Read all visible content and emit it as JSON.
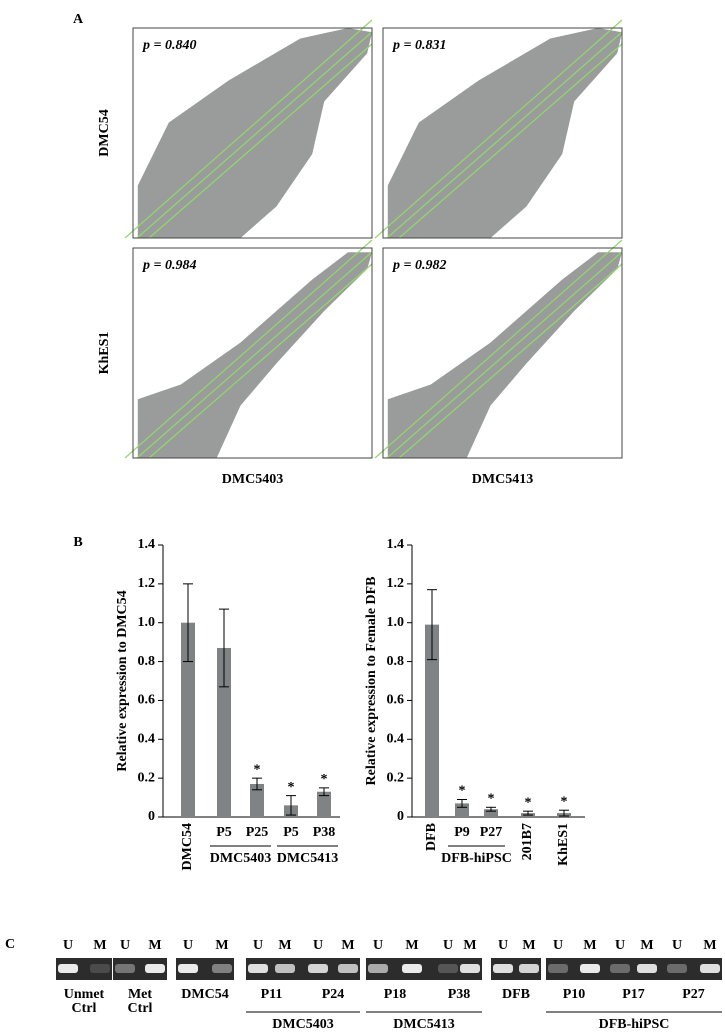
{
  "panels": [
    "A",
    "B",
    "C"
  ],
  "chart_data": [
    {
      "type": "scatter",
      "annotation": "p = 0.840",
      "ylabel": "DMC54"
    },
    {
      "type": "scatter",
      "annotation": "p = 0.831"
    },
    {
      "type": "scatter",
      "annotation": "p = 0.984",
      "ylabel": "KhES1",
      "xlabel": "DMC5403"
    },
    {
      "type": "scatter",
      "annotation": "p = 0.982",
      "xlabel": "DMC5413"
    },
    {
      "type": "bar",
      "ylabel": "Relative expression to DMC54",
      "color": "#7f8383",
      "categories": [
        "DMC54",
        "P5",
        "P25",
        "P5",
        "P38"
      ],
      "groups": [
        null,
        "DMC5403",
        "DMC5403",
        "DMC5413",
        "DMC5413"
      ],
      "values": [
        1.0,
        0.87,
        0.17,
        0.06,
        0.13
      ],
      "errors": [
        0.2,
        0.2,
        0.03,
        0.05,
        0.02
      ],
      "markers": [
        null,
        null,
        "*",
        "*",
        "*"
      ],
      "ylim": [
        0,
        1.4
      ],
      "yticks": [
        0,
        0.2,
        0.4,
        0.6,
        0.8,
        {
          "value": 1,
          "label": "1.0"
        },
        1.2,
        1.4
      ]
    },
    {
      "type": "bar",
      "ylabel": "Relative expression to Female DFB",
      "color": "#7f8383",
      "categories": [
        "DFB",
        "P9",
        "P27",
        "201B7",
        "KhES1"
      ],
      "groups": [
        null,
        "DFB-hiPSC",
        "DFB-hiPSC",
        null,
        null
      ],
      "values": [
        0.99,
        0.07,
        0.04,
        0.02,
        0.02
      ],
      "errors": [
        0.18,
        0.02,
        0.01,
        0.01,
        0.015
      ],
      "markers": [
        null,
        "*",
        "*",
        "*",
        "*"
      ],
      "ylim": [
        0,
        1.4
      ],
      "yticks": [
        0,
        0.2,
        0.4,
        0.6,
        0.8,
        {
          "value": 1,
          "label": "1.0"
        },
        1.2,
        1.4
      ]
    }
  ],
  "gel": {
    "samples": [
      {
        "name": [
          "Unmet",
          "Ctrl"
        ],
        "lanes": [
          "U",
          "M"
        ]
      },
      {
        "name": [
          "Met",
          "Ctrl"
        ],
        "lanes": [
          "U",
          "M"
        ]
      },
      {
        "name": [
          "DMC54"
        ],
        "lanes": [
          "U",
          "M"
        ]
      },
      {
        "name": [
          "P11"
        ],
        "lanes": [
          "U",
          "M"
        ]
      },
      {
        "name": [
          "P24"
        ],
        "lanes": [
          "U",
          "M"
        ]
      },
      {
        "name": [
          "P18"
        ],
        "lanes": [
          "U",
          "M"
        ]
      },
      {
        "name": [
          "P38"
        ],
        "lanes": [
          "U",
          "M"
        ]
      },
      {
        "name": [
          "DFB"
        ],
        "lanes": [
          "U",
          "M"
        ]
      },
      {
        "name": [
          "P10"
        ],
        "lanes": [
          "U",
          "M"
        ]
      },
      {
        "name": [
          "P17"
        ],
        "lanes": [
          "U",
          "M"
        ]
      },
      {
        "name": [
          "P27"
        ],
        "lanes": [
          "U",
          "M"
        ]
      }
    ],
    "groups": [
      null,
      null,
      null,
      "DMC5403",
      "DMC5403",
      "DMC5413",
      "DMC5413",
      null,
      "DFB-hiPSC",
      "DFB-hiPSC",
      "DFB-hiPSC"
    ]
  }
}
